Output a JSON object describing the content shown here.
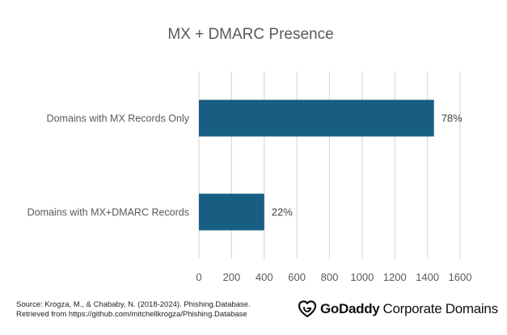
{
  "chart_data": {
    "type": "bar",
    "orientation": "horizontal",
    "title": "MX + DMARC Presence",
    "categories": [
      "Domains with MX Records Only",
      "Domains with MX+DMARC Records"
    ],
    "values": [
      1440,
      400
    ],
    "data_labels": [
      "78%",
      "22%"
    ],
    "x_ticks": [
      "0",
      "200",
      "400",
      "600",
      "800",
      "1000",
      "1200",
      "1400",
      "1600"
    ],
    "xlim": [
      0,
      1600
    ],
    "grid": "vertical",
    "legend": "none",
    "bar_color": "#175E82"
  },
  "footer": {
    "source_line1": "Source: Krogza, M., & Chababy, N. (2018-2024). Phishing.Database.",
    "source_line2": "Retrieved from  https://github.com/mitchellkrogza/Phishing.Database",
    "brand_name": "GoDaddy",
    "brand_suffix": "Corporate Domains",
    "brand_icon": "godaddy-logo-icon"
  }
}
